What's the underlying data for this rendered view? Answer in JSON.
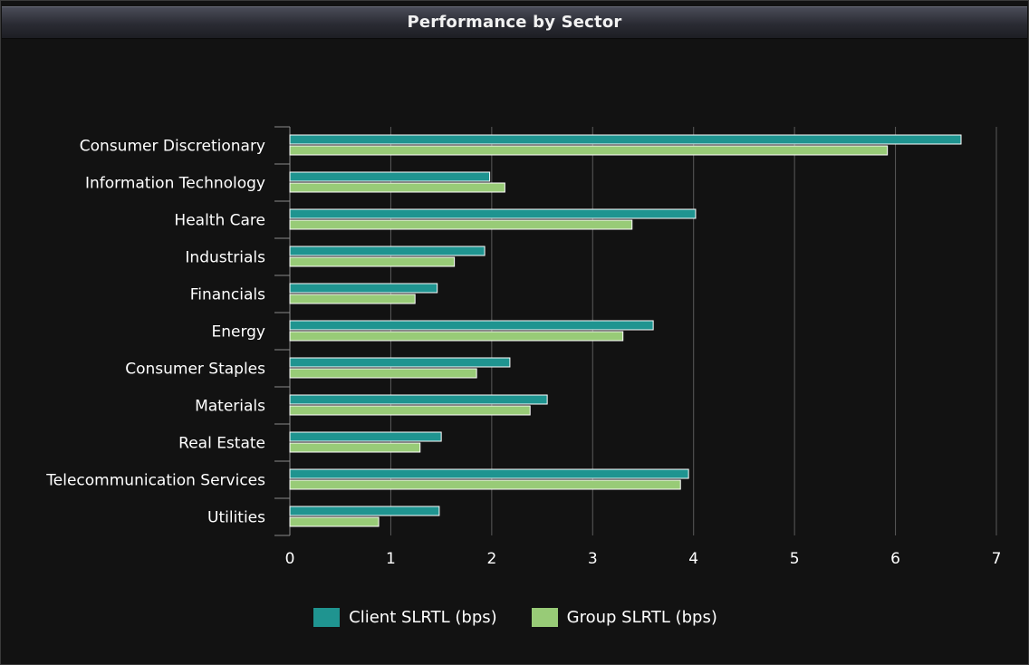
{
  "header": {
    "title": "Performance by Sector"
  },
  "chart_data": {
    "type": "bar",
    "orientation": "horizontal",
    "title": "Performance by Sector",
    "categories": [
      "Consumer Discretionary",
      "Information Technology",
      "Health Care",
      "Industrials",
      "Financials",
      "Energy",
      "Consumer Staples",
      "Materials",
      "Real Estate",
      "Telecommunication Services",
      "Utilities"
    ],
    "series": [
      {
        "name": "Client SLRTL (bps)",
        "color": "#1f9490",
        "values": [
          6.65,
          1.98,
          4.02,
          1.93,
          1.46,
          3.6,
          2.18,
          2.55,
          1.5,
          3.95,
          1.48
        ]
      },
      {
        "name": "Group SLRTL (bps)",
        "color": "#98cb77",
        "values": [
          5.92,
          2.13,
          3.39,
          1.63,
          1.24,
          3.3,
          1.85,
          2.38,
          1.29,
          3.87,
          0.88
        ]
      }
    ],
    "xlim": [
      0,
      7
    ],
    "xticks": [
      "0",
      "1",
      "2",
      "3",
      "4",
      "5",
      "6",
      "7"
    ],
    "grid": true,
    "legend_position": "bottom"
  }
}
